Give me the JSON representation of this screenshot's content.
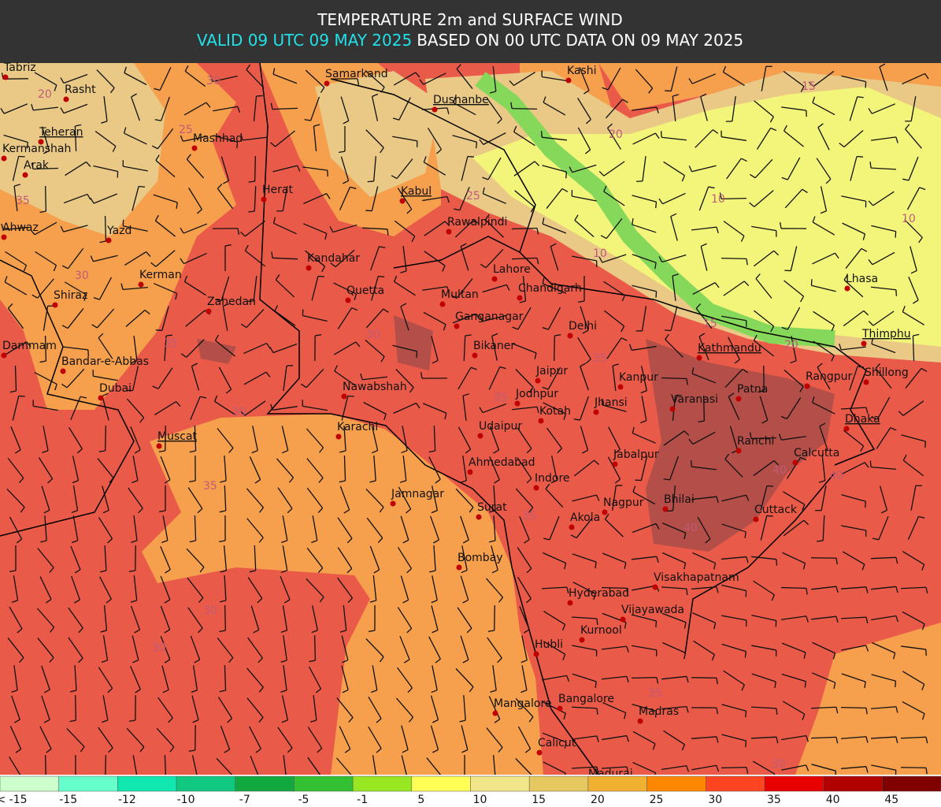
{
  "header": {
    "title": "TEMPERATURE 2m and SURFACE WIND",
    "valid": "VALID 09 UTC 09 MAY 2025",
    "based": "BASED ON 00 UTC DATA ON 09 MAY 2025"
  },
  "cities": [
    "Tabriz",
    "Rasht",
    "Teheran",
    "Kermanshah",
    "Arak",
    "Mashhad",
    "Herat",
    "Samarkand",
    "Dushanbe",
    "Kashi",
    "Kabul",
    "Rawalpindi",
    "Ahwaz",
    "Yazd",
    "Kandahar",
    "Kerman",
    "Lahore",
    "Chandigarh",
    "Shiraz",
    "Zahedan",
    "Quetta",
    "Multan",
    "Ganganagar",
    "Delhi",
    "Lhasa",
    "Dammam",
    "Bandar-e-Abbas",
    "Bikaner",
    "Kathmandu",
    "Thimphu",
    "Shillong",
    "Rangpur",
    "Jaipur",
    "Kanpur",
    "Patna",
    "Dubai",
    "Nawabshah",
    "Jodhpur",
    "Varanasi",
    "Jhansi",
    "Kotah",
    "Dhaka",
    "Karachi",
    "Udaipur",
    "Muscat",
    "Ranchi",
    "Calcutta",
    "Jabalpur",
    "Ahmedabad",
    "Indore",
    "Jamnagar",
    "Nagpur",
    "Bhilai",
    "Surat",
    "Cuttack",
    "Akola",
    "Bombay",
    "Visakhapatnam",
    "Hyderabad",
    "Vijayawada",
    "Kurnool",
    "Hubli",
    "Bangalore",
    "Mangalore",
    "Madras",
    "Calicut",
    "Madurai"
  ],
  "contour_labels": [
    "30",
    "20",
    "25",
    "35",
    "30",
    "35",
    "30",
    "35",
    "30",
    "30",
    "35",
    "35",
    "40",
    "40",
    "40",
    "30",
    "10",
    "10",
    "15",
    "20",
    "10",
    "25",
    "35",
    "35",
    "30",
    "15",
    "20"
  ],
  "colorbar": {
    "labels": [
      "< -15",
      "-15",
      "-12",
      "-10",
      "-7",
      "-5",
      "-1",
      "5",
      "10",
      "15",
      "20",
      "25",
      "30",
      "35",
      "40",
      "45"
    ],
    "colors": [
      "#ccffcc",
      "#66ffcc",
      "#11e8b0",
      "#11c880",
      "#11a840",
      "#33c033",
      "#99e622",
      "#ffff55",
      "#f2e68a",
      "#e6c860",
      "#f0b030",
      "#ff8800",
      "#ff4422",
      "#e80000",
      "#b00000",
      "#800000"
    ]
  }
}
